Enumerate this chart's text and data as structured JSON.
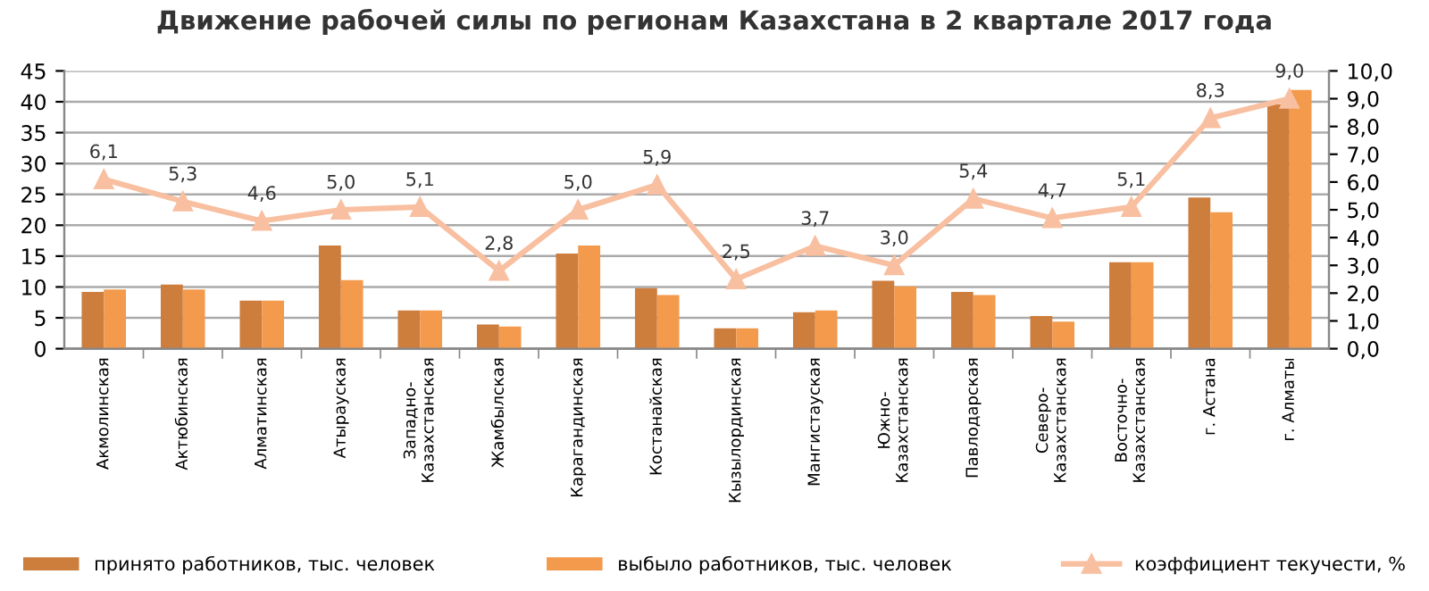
{
  "chart_data": {
    "type": "bar",
    "title": "Движение рабочей силы по регионам Казахстана в 2 квартале 2017 года",
    "categories": [
      "Акмолинская",
      "Актюбинская",
      "Алматинская",
      "Атырауская",
      "Западно-\nКазахстанская",
      "Жамбылская",
      "Карагандинская",
      "Костанайская",
      "Кызылординская",
      "Мангистауская",
      "Южно-\nКазахстанская",
      "Павлодарская",
      "Северо-\nКазахстанская",
      "Восточно-\nКазахстанская",
      "г. Астана",
      "г. Алматы"
    ],
    "series": [
      {
        "name": "принято работников, тыс. человек",
        "color": "#cd7d3c",
        "values": [
          9.2,
          10.4,
          7.8,
          16.7,
          6.2,
          3.9,
          15.4,
          9.8,
          3.3,
          5.9,
          11.0,
          9.2,
          5.3,
          14.0,
          24.5,
          39.6
        ]
      },
      {
        "name": "выбыло работников, тыс. человек",
        "color": "#f39a4c",
        "values": [
          9.6,
          9.6,
          7.8,
          11.1,
          6.2,
          3.6,
          16.7,
          8.7,
          3.3,
          6.2,
          10.1,
          8.7,
          4.4,
          14.0,
          22.1,
          41.9
        ]
      },
      {
        "name": "коэффициент текучести, %",
        "type": "line",
        "axis": "y2",
        "marker": "triangle",
        "color": "#f8bfa0",
        "values": [
          6.1,
          5.3,
          4.6,
          5.0,
          5.1,
          2.8,
          5.0,
          5.9,
          2.5,
          3.7,
          3.0,
          5.4,
          4.7,
          5.1,
          8.3,
          9.0
        ],
        "value_labels": [
          "6,1",
          "5,3",
          "4,6",
          "5,0",
          "5,1",
          "2,8",
          "5,0",
          "5,9",
          "2,5",
          "3,7",
          "3,0",
          "5,4",
          "4,7",
          "5,1",
          "8,3",
          "9,0"
        ]
      }
    ],
    "ylim": [
      0,
      45
    ],
    "yticks": [
      0,
      5,
      10,
      15,
      20,
      25,
      30,
      35,
      40,
      45
    ],
    "y2lim": [
      0,
      10
    ],
    "y2ticks": [
      {
        "value": 0,
        "label": "0,0"
      },
      {
        "value": 1,
        "label": "1,0"
      },
      {
        "value": 2,
        "label": "2,0"
      },
      {
        "value": 3,
        "label": "3,0"
      },
      {
        "value": 4,
        "label": "4,0"
      },
      {
        "value": 5,
        "label": "5,0"
      },
      {
        "value": 6,
        "label": "6,0"
      },
      {
        "value": 7,
        "label": "7,0"
      },
      {
        "value": 8,
        "label": "8,0"
      },
      {
        "value": 9,
        "label": "9,0"
      },
      {
        "value": 10,
        "label": "10,0"
      }
    ],
    "grid": "y",
    "legend": "bottom"
  }
}
